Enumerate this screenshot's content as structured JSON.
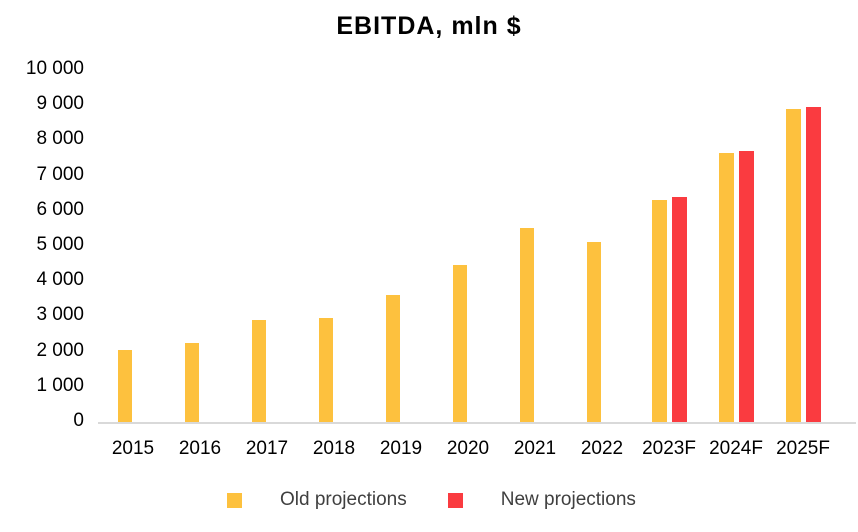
{
  "title": "EBITDA, mln $",
  "chart_data": {
    "type": "bar",
    "title": "EBITDA, mln $",
    "categories": [
      "2015",
      "2016",
      "2017",
      "2018",
      "2019",
      "2020",
      "2021",
      "2022",
      "2023F",
      "2024F",
      "2025F"
    ],
    "series": [
      {
        "name": "Old projections",
        "color": "#FDC13E",
        "values": [
          2050,
          2250,
          2900,
          2950,
          3600,
          4450,
          5500,
          5100,
          6300,
          7650,
          8900
        ]
      },
      {
        "name": "New projections",
        "color": "#FA3B40",
        "values": [
          null,
          null,
          null,
          null,
          null,
          null,
          null,
          null,
          6400,
          7700,
          8950
        ]
      }
    ],
    "ylim": [
      0,
      10000
    ],
    "ytick_labels": [
      "0",
      "1 000",
      "2 000",
      "3 000",
      "4 000",
      "5 000",
      "6 000",
      "7 000",
      "8 000",
      "9 000",
      "10 000"
    ],
    "grid": false,
    "legend_position": "bottom",
    "axis_line_color": "#D9D9D9"
  },
  "legend": {
    "items": [
      {
        "label": "Old projections",
        "color": "#FDC13E"
      },
      {
        "label": "New projections",
        "color": "#FA3B40"
      }
    ]
  }
}
